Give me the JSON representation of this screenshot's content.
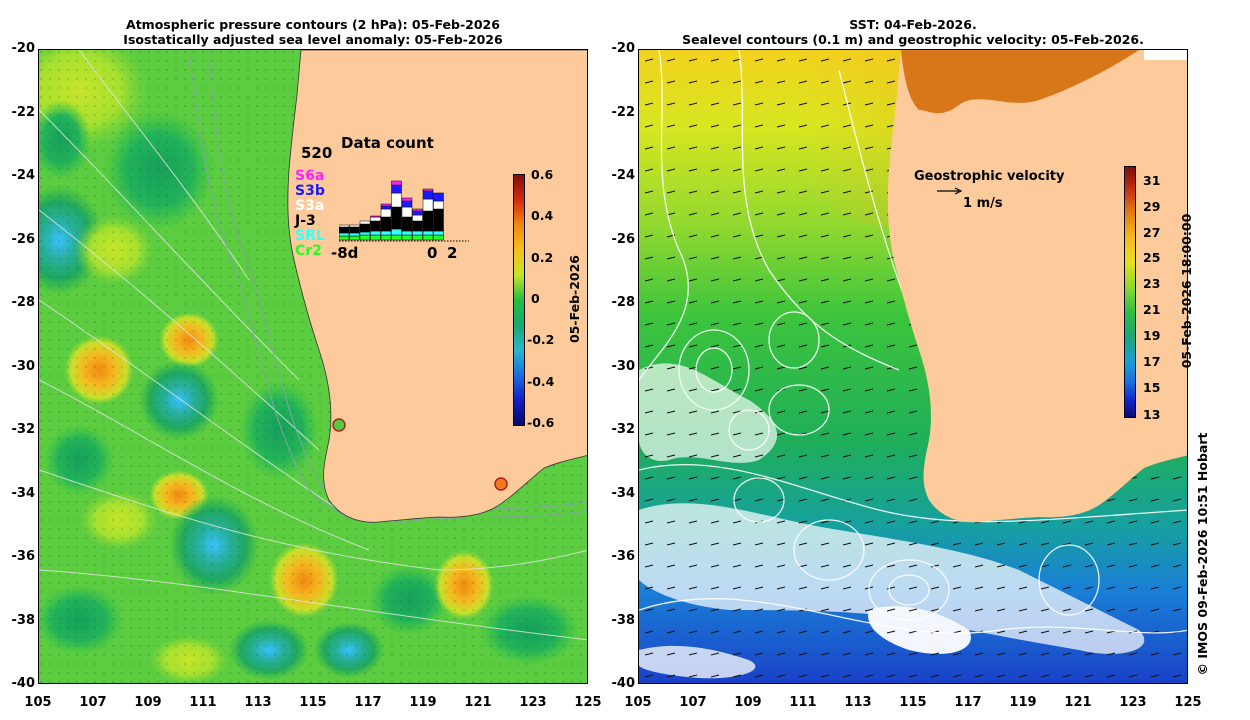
{
  "left_panel": {
    "title_line1": "Atmospheric pressure contours (2 hPa): 05-Feb-2026",
    "title_line2": "Isostatically adjusted sea level anomaly: 05-Feb-2026",
    "colorbar": {
      "ticks": [
        "0.6",
        "0.4",
        "0.2",
        "0",
        "-0.2",
        "-0.4",
        "-0.6"
      ],
      "label": "05-Feb-2026",
      "min": -0.6,
      "max": 0.6
    },
    "data_count": {
      "title": "Data count",
      "max_label": "520",
      "x_labels": [
        "-8d",
        "0",
        "2"
      ],
      "legend": [
        {
          "name": "S6a",
          "color": "#ff22ff"
        },
        {
          "name": "S3b",
          "color": "#1a1aff"
        },
        {
          "name": "S3a",
          "color": "#ffffff"
        },
        {
          "name": "J-3",
          "color": "#000000"
        },
        {
          "name": "SRL",
          "color": "#33ffff"
        },
        {
          "name": "Cr2",
          "color": "#22ff22"
        }
      ]
    }
  },
  "right_panel": {
    "title_line1": "SST: 04-Feb-2026.",
    "title_line2": "Sealevel contours (0.1 m) and geostrophic velocity: 05-Feb-2026.",
    "velocity_label": "Geostrophic velocity",
    "velocity_scale": "1 m/s",
    "colorbar": {
      "ticks": [
        "31",
        "29",
        "27",
        "25",
        "23",
        "21",
        "19",
        "17",
        "15",
        "13"
      ],
      "label": "05-Feb-2026 18:00:00",
      "min": 13,
      "max": 31
    }
  },
  "axes": {
    "lat_ticks": [
      "-20",
      "-22",
      "-24",
      "-26",
      "-28",
      "-30",
      "-32",
      "-34",
      "-36",
      "-38",
      "-40"
    ],
    "lon_ticks": [
      "105",
      "107",
      "109",
      "111",
      "113",
      "115",
      "117",
      "119",
      "121",
      "123",
      "125"
    ]
  },
  "credit": "© IMOS 09-Feb-2026 10:51 Hobart",
  "colors": {
    "land": "#fdcb9b",
    "ocean_mid": "#33cc55"
  }
}
